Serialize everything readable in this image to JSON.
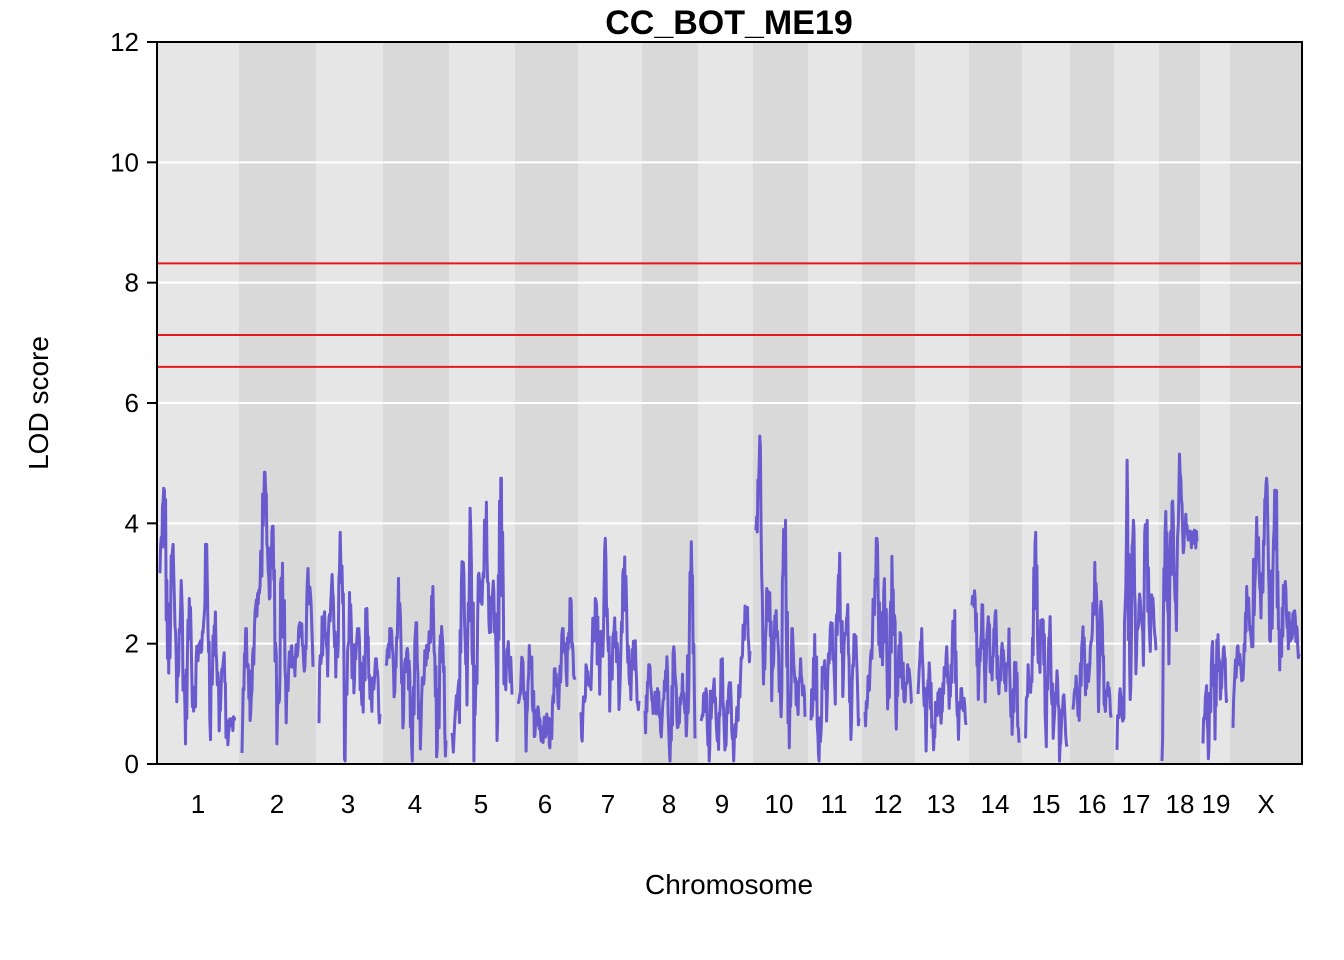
{
  "chart_data": {
    "type": "line",
    "title": "CC_BOT_ME19",
    "xlabel": "Chromosome",
    "ylabel": "LOD score",
    "ylim": [
      0,
      12
    ],
    "yticks": [
      "0",
      "2",
      "4",
      "6",
      "8",
      "10",
      "12"
    ],
    "grid": true,
    "line_color": "#6a5acd",
    "threshold_color": "#e31a1c",
    "thresholds": [
      8.32,
      7.13,
      6.6
    ],
    "chromosomes": [
      {
        "name": "1",
        "peaks": [
          4.6,
          3.6,
          3.0,
          2.7,
          1.9,
          3.6,
          2.5,
          1.8,
          0.7
        ],
        "valleys": [
          3.1,
          1.5,
          1.2,
          0.6,
          0.9,
          2.0,
          1.0,
          0.8
        ]
      },
      {
        "name": "2",
        "peaks": [
          2.2,
          2.5,
          4.8,
          3.9,
          3.4,
          1.9,
          2.3,
          3.2
        ],
        "valleys": [
          0.6,
          0.9,
          2.8,
          2.8,
          0.7,
          1.3,
          1.6,
          1.7
        ]
      },
      {
        "name": "3",
        "peaks": [
          2.6,
          3.1,
          3.8,
          2.8,
          2.2,
          2.5,
          1.7
        ],
        "valleys": [
          0.9,
          1.9,
          1.5,
          0.4,
          1.3,
          0.7,
          0.9
        ]
      },
      {
        "name": "4",
        "peaks": [
          2.2,
          3.3,
          2.5,
          2.3,
          1.8,
          2.9,
          2.3
        ],
        "valleys": [
          1.6,
          1.3,
          0.8,
          0.3,
          0.7,
          1.9,
          0.3
        ]
      },
      {
        "name": "5",
        "peaks": [
          1.0,
          3.3,
          4.2,
          3.2,
          4.3,
          3.1,
          4.7,
          2.1
        ],
        "valleys": [
          0.3,
          1.4,
          0.8,
          0.2,
          2.6,
          2.0,
          1.0,
          1.3
        ]
      },
      {
        "name": "6",
        "peaks": [
          1.7,
          1.9,
          0.9,
          0.8,
          1.7,
          2.2,
          2.7
        ],
        "valleys": [
          0.9,
          0.6,
          0.5,
          0.4,
          0.3,
          1.0,
          1.5
        ]
      },
      {
        "name": "7",
        "peaks": [
          1.6,
          2.7,
          3.7,
          2.4,
          3.4,
          2.0
        ],
        "valleys": [
          0.5,
          1.4,
          1.0,
          1.3,
          0.9,
          1.0
        ]
      },
      {
        "name": "8",
        "peaks": [
          1.6,
          1.3,
          1.8,
          1.9,
          1.4,
          3.6
        ],
        "valleys": [
          0.6,
          0.8,
          0.4,
          0.2,
          0.7,
          0.5
        ]
      },
      {
        "name": "9",
        "peaks": [
          1.2,
          1.6,
          1.7,
          1.3,
          0.9,
          2.6
        ],
        "valleys": [
          0.6,
          0.3,
          0.2,
          0.4,
          0.2,
          1.8
        ]
      },
      {
        "name": "10",
        "peaks": [
          5.4,
          2.9,
          2.5,
          4.0,
          2.2,
          1.7
        ],
        "valleys": [
          3.9,
          1.8,
          1.4,
          1.0,
          0.5,
          0.9
        ]
      },
      {
        "name": "11",
        "peaks": [
          2.1,
          1.8,
          2.3,
          3.5,
          2.6,
          2.1
        ],
        "valleys": [
          0.6,
          0.1,
          1.0,
          1.4,
          1.6,
          0.7
        ]
      },
      {
        "name": "12",
        "peaks": [
          1.4,
          3.7,
          3.0,
          3.4,
          2.1,
          1.6
        ],
        "valleys": [
          0.8,
          2.2,
          1.5,
          1.0,
          0.9,
          1.0
        ]
      },
      {
        "name": "13",
        "peaks": [
          2.2,
          1.7,
          1.3,
          1.9,
          2.5,
          1.2
        ],
        "valleys": [
          1.2,
          0.5,
          0.1,
          0.6,
          1.0,
          0.6
        ]
      },
      {
        "name": "14",
        "peaks": [
          2.8,
          2.6,
          2.4,
          2.5,
          2.1,
          2.2,
          1.7
        ],
        "valleys": [
          2.6,
          1.2,
          1.3,
          1.0,
          0.9,
          1.1,
          0.4
        ]
      },
      {
        "name": "15",
        "peaks": [
          1.6,
          3.8,
          2.5,
          2.4,
          1.5,
          1.1
        ],
        "valleys": [
          0.2,
          1.2,
          1.4,
          0.7,
          0.4,
          0.2
        ]
      },
      {
        "name": "16",
        "peaks": [
          1.4,
          2.3,
          1.6,
          3.3,
          2.7,
          1.3
        ],
        "valleys": [
          1.0,
          0.8,
          1.2,
          2.0,
          1.1,
          0.9
        ]
      },
      {
        "name": "17",
        "peaks": [
          1.2,
          5.0,
          4.0,
          3.1,
          4.4,
          2.8
        ],
        "valleys": [
          0.4,
          0.6,
          1.4,
          1.8,
          2.0,
          1.8
        ]
      },
      {
        "name": "18",
        "peaks": [
          4.4,
          4.5,
          5.1,
          4.1,
          3.8
        ],
        "valleys": [
          0.4,
          2.1,
          2.2,
          3.4,
          3.7
        ]
      },
      {
        "name": "19",
        "peaks": [
          1.4,
          2.3,
          2.1,
          1.9
        ],
        "valleys": [
          0.4,
          0.3,
          0.9,
          1.2
        ]
      },
      {
        "name": "X",
        "peaks": [
          1.9,
          2.9,
          4.2,
          4.7,
          4.5,
          3.2,
          2.5
        ],
        "valleys": [
          0.8,
          1.4,
          2.0,
          2.6,
          2.2,
          1.6,
          1.9
        ]
      }
    ]
  }
}
